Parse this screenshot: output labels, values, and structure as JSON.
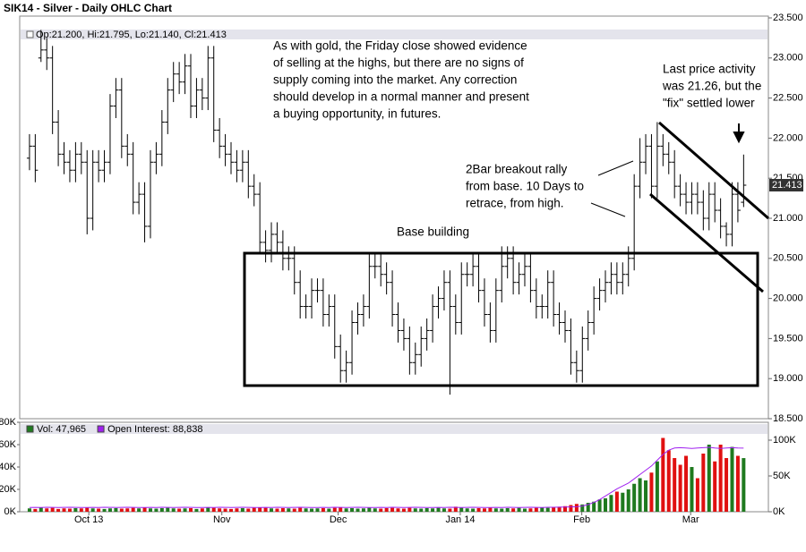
{
  "chart_data": [
    {
      "type": "ohlc",
      "title": "SIK14 - Silver - Daily OHLC Chart",
      "subtitle": "Op:21.200, Hi:21.795, Lo:21.140, Cl:21.413",
      "color": "#000000",
      "xlim": [
        -1.7,
        128.3
      ],
      "ylim": [
        18.5,
        23.5
      ],
      "yticks": [
        {
          "value": 18.5,
          "label": "18.500"
        },
        {
          "value": 19,
          "label": "19.000"
        },
        {
          "value": 19.5,
          "label": "19.500"
        },
        {
          "value": 20,
          "label": "20.000"
        },
        {
          "value": 20.5,
          "label": "20.500"
        },
        {
          "value": 21,
          "label": "21.000"
        },
        {
          "value": 21.5,
          "label": "21.500"
        },
        {
          "value": 22,
          "label": "22.000"
        },
        {
          "value": 22.5,
          "label": "22.500"
        },
        {
          "value": 23,
          "label": "23.000"
        },
        {
          "value": 23.5,
          "label": "23.500"
        }
      ],
      "open": [
        21.75,
        21.9,
        23.0,
        23.1,
        23.0,
        22.2,
        21.8,
        21.7,
        21.6,
        21.8,
        21.7,
        21.0,
        21.7,
        21.6,
        21.7,
        22.4,
        22.6,
        21.9,
        21.8,
        21.2,
        21.3,
        20.9,
        21.7,
        21.8,
        22.2,
        22.6,
        22.8,
        22.7,
        22.9,
        22.4,
        22.6,
        22.5,
        23.0,
        22.1,
        21.9,
        21.8,
        21.7,
        21.6,
        21.7,
        21.4,
        21.3,
        20.7,
        20.6,
        20.8,
        20.7,
        20.5,
        20.5,
        20.2,
        19.9,
        19.9,
        20.1,
        20.1,
        19.8,
        19.9,
        19.4,
        19.1,
        19.2,
        19.7,
        19.8,
        19.9,
        20.4,
        20.4,
        20.3,
        20.2,
        19.8,
        19.6,
        19.5,
        19.2,
        19.3,
        19.5,
        19.6,
        19.9,
        20.0,
        20.2,
        19.9,
        19.7,
        20.3,
        20.3,
        20.4,
        20.1,
        19.8,
        19.6,
        20.1,
        20.4,
        20.5,
        20.2,
        20.3,
        20.4,
        20.1,
        19.9,
        19.9,
        20.2,
        19.8,
        19.7,
        19.6,
        19.2,
        19.1,
        19.5,
        19.7,
        20.0,
        20.1,
        20.2,
        20.3,
        20.2,
        20.3,
        20.5,
        21.4,
        21.7,
        21.9,
        21.4,
        21.9,
        21.8,
        21.7,
        21.4,
        21.3,
        21.2,
        21.3,
        21.2,
        21.0,
        21.3,
        21.1,
        20.9,
        20.8,
        21.3,
        21.2
      ],
      "high": [
        22.05,
        22.05,
        23.35,
        23.25,
        23.15,
        22.35,
        21.95,
        21.85,
        21.95,
        21.95,
        21.85,
        21.85,
        21.85,
        21.85,
        22.55,
        22.75,
        22.75,
        22.05,
        21.95,
        21.45,
        21.45,
        21.85,
        21.95,
        22.35,
        22.75,
        22.95,
        22.95,
        23.05,
        23.05,
        22.75,
        22.75,
        23.15,
        23.15,
        22.25,
        22.05,
        21.95,
        21.85,
        21.85,
        21.85,
        21.55,
        21.45,
        20.85,
        20.95,
        20.95,
        20.85,
        20.65,
        20.65,
        20.35,
        20.05,
        20.25,
        20.25,
        20.25,
        20.05,
        20.05,
        19.55,
        19.35,
        19.85,
        19.95,
        20.05,
        20.55,
        20.55,
        20.55,
        20.45,
        20.35,
        19.95,
        19.75,
        19.65,
        19.45,
        19.65,
        19.75,
        20.05,
        20.15,
        20.35,
        20.35,
        20.05,
        20.45,
        20.45,
        20.55,
        20.55,
        20.25,
        19.95,
        20.25,
        20.65,
        20.65,
        20.65,
        20.45,
        20.55,
        20.55,
        20.25,
        20.05,
        20.35,
        20.35,
        19.95,
        19.85,
        19.75,
        19.35,
        19.65,
        19.85,
        20.15,
        20.25,
        20.35,
        20.45,
        20.45,
        20.45,
        20.65,
        21.55,
        22.0,
        22.05,
        22.05,
        22.2,
        22.05,
        21.95,
        21.85,
        21.55,
        21.45,
        21.45,
        21.45,
        21.35,
        21.45,
        21.45,
        21.25,
        20.95,
        21.45,
        21.45,
        21.795
      ],
      "low": [
        21.6,
        21.45,
        22.95,
        22.85,
        22.05,
        21.65,
        21.55,
        21.45,
        21.45,
        21.55,
        20.8,
        20.85,
        21.45,
        21.45,
        21.55,
        22.25,
        21.75,
        21.65,
        21.05,
        21.05,
        20.7,
        20.75,
        21.55,
        21.65,
        22.05,
        22.45,
        22.55,
        22.55,
        22.25,
        22.25,
        22.35,
        22.35,
        21.95,
        21.75,
        21.65,
        21.55,
        21.45,
        21.45,
        21.25,
        21.15,
        20.55,
        20.45,
        20.45,
        20.55,
        20.35,
        20.35,
        20.05,
        19.75,
        19.75,
        19.75,
        19.95,
        19.65,
        19.65,
        19.25,
        18.95,
        18.95,
        19.05,
        19.55,
        19.65,
        19.75,
        20.25,
        20.15,
        20.05,
        19.65,
        19.45,
        19.35,
        19.05,
        19.05,
        19.15,
        19.35,
        19.45,
        19.75,
        19.85,
        18.8,
        19.55,
        19.55,
        20.15,
        20.15,
        19.95,
        19.65,
        19.45,
        19.45,
        19.95,
        20.25,
        20.05,
        20.05,
        20.15,
        19.95,
        19.75,
        19.75,
        19.75,
        19.65,
        19.55,
        19.45,
        19.05,
        18.95,
        18.95,
        19.35,
        19.55,
        19.85,
        19.95,
        20.05,
        20.05,
        20.05,
        20.15,
        20.35,
        21.25,
        21.55,
        21.25,
        21.25,
        21.65,
        21.55,
        21.25,
        21.15,
        21.05,
        21.05,
        21.05,
        20.85,
        20.85,
        20.95,
        20.75,
        20.65,
        20.65,
        20.95,
        21.14
      ],
      "close": [
        21.9,
        21.6,
        23.1,
        23.0,
        22.2,
        21.8,
        21.7,
        21.6,
        21.8,
        21.7,
        21.0,
        21.7,
        21.6,
        21.7,
        22.4,
        22.6,
        21.9,
        21.8,
        21.2,
        21.3,
        20.9,
        21.7,
        21.8,
        22.2,
        22.6,
        22.8,
        22.7,
        22.9,
        22.4,
        22.6,
        22.5,
        23.0,
        22.1,
        21.9,
        21.8,
        21.7,
        21.6,
        21.7,
        21.4,
        21.3,
        20.7,
        20.6,
        20.8,
        20.7,
        20.5,
        20.5,
        20.2,
        19.9,
        19.9,
        20.1,
        20.1,
        19.8,
        19.9,
        19.4,
        19.1,
        19.2,
        19.7,
        19.8,
        19.9,
        20.4,
        20.4,
        20.3,
        20.2,
        19.8,
        19.6,
        19.5,
        19.2,
        19.3,
        19.5,
        19.6,
        19.9,
        20.0,
        20.2,
        19.9,
        19.7,
        20.3,
        20.3,
        20.4,
        20.1,
        19.8,
        19.6,
        20.1,
        20.4,
        20.5,
        20.2,
        20.3,
        20.4,
        20.1,
        19.9,
        19.9,
        20.2,
        19.8,
        19.7,
        19.6,
        19.2,
        19.1,
        19.5,
        19.7,
        20.0,
        20.1,
        20.2,
        20.3,
        20.2,
        20.3,
        20.5,
        21.4,
        21.7,
        21.9,
        21.4,
        21.9,
        21.8,
        21.7,
        21.4,
        21.3,
        21.2,
        21.3,
        21.2,
        21.0,
        21.3,
        21.1,
        20.9,
        20.8,
        21.3,
        21.1,
        21.413
      ],
      "annotations": [
        [
          "As with gold, the Friday close showed evidence",
          "of selling at the highs, but there are no signs of",
          "supply coming into the market.  Any correction",
          "should develop in a normal manner and present",
          "a buying opportunity, in futures."
        ],
        [
          "Last price activity",
          "was 21.26, but the",
          "\"fix\" settled lower"
        ],
        [
          "2Bar breakout rally",
          "from base.  10 Days to",
          "retrace, from high."
        ],
        [
          "Base building"
        ]
      ]
    },
    {
      "type": "bar",
      "xlim": [
        -1.7,
        128.3
      ],
      "xticks": [
        {
          "value": 10.3,
          "label": "Oct 13"
        },
        {
          "value": 33.4,
          "label": "Nov"
        },
        {
          "value": 53.6,
          "label": "Dec"
        },
        {
          "value": 74.8,
          "label": "Jan 14"
        },
        {
          "value": 95.9,
          "label": "Feb"
        },
        {
          "value": 114.8,
          "label": "Mar"
        }
      ],
      "ylim": [
        0,
        80000
      ],
      "yticks": [
        {
          "value": 0,
          "label": "0K"
        },
        {
          "value": 20000,
          "label": "20K"
        },
        {
          "value": 40000,
          "label": "40K"
        },
        {
          "value": 60000,
          "label": "60K"
        },
        {
          "value": 80000,
          "label": "80K"
        }
      ],
      "y2lim": [
        0,
        125000
      ],
      "y2ticks": [
        {
          "value": 0,
          "label": "0K"
        },
        {
          "value": 50000,
          "label": "50K"
        },
        {
          "value": 100000,
          "label": "100K"
        }
      ],
      "up_color": "#1f7a1f",
      "down_color": "#e01010",
      "series": [
        {
          "name": "Vol: 47,965",
          "color": "#1f7a1f",
          "values": [
            3000,
            2500,
            4000,
            3000,
            3500,
            2500,
            3000,
            2800,
            3200,
            3000,
            3500,
            3000,
            2800,
            2500,
            3000,
            3200,
            2800,
            3000,
            3500,
            3000,
            4000,
            3000,
            2800,
            3200,
            3500,
            3000,
            2800,
            3000,
            3200,
            2500,
            3000,
            3800,
            3500,
            3000,
            2800,
            2500,
            3000,
            3200,
            2800,
            3500,
            4000,
            3500,
            3000,
            2800,
            3200,
            3000,
            2800,
            3500,
            3000,
            2800,
            3000,
            3200,
            2800,
            3500,
            4000,
            3000,
            3200,
            2800,
            3000,
            3500,
            3000,
            2800,
            3200,
            3500,
            3000,
            2800,
            3500,
            3000,
            2800,
            3200,
            3000,
            3500,
            3000,
            2800,
            4500,
            3500,
            3000,
            2800,
            3200,
            3000,
            3500,
            3000,
            2800,
            3200,
            3000,
            3500,
            2800,
            3000,
            3500,
            4000,
            3500,
            4000,
            4500,
            5000,
            6000,
            7000,
            6500,
            8000,
            9000,
            11000,
            12000,
            15000,
            18000,
            17000,
            20000,
            25000,
            30000,
            28000,
            35000,
            45000,
            66000,
            55000,
            48000,
            42000,
            50000,
            40000,
            30000,
            52000,
            60000,
            45000,
            60000,
            48000,
            58000,
            50000,
            47965
          ]
        },
        {
          "name": "Open Interest: 88,838",
          "color": "#a020f0",
          "axis": "y2",
          "values": [
            6000,
            6100,
            6000,
            6200,
            6100,
            6000,
            6100,
            6200,
            6100,
            6000,
            6000,
            6100,
            6000,
            6200,
            6100,
            6000,
            6100,
            6200,
            6100,
            6000,
            6000,
            6100,
            6000,
            6200,
            6100,
            6000,
            6100,
            6200,
            6100,
            6000,
            6000,
            6100,
            6000,
            6200,
            6100,
            6000,
            6100,
            6200,
            6100,
            6000,
            6000,
            6100,
            6000,
            6200,
            6100,
            6000,
            6100,
            6200,
            6100,
            6000,
            6000,
            6100,
            6000,
            6200,
            6100,
            6000,
            6100,
            6200,
            6100,
            6000,
            6000,
            6100,
            6000,
            6200,
            6100,
            6000,
            6100,
            6200,
            6100,
            6000,
            6000,
            6100,
            6000,
            6200,
            6100,
            6000,
            6100,
            6200,
            6100,
            6000,
            6000,
            6100,
            6000,
            6200,
            6100,
            6000,
            6100,
            6200,
            6100,
            6000,
            6200,
            6300,
            6400,
            6500,
            6800,
            7000,
            8000,
            10000,
            13000,
            17000,
            22000,
            27000,
            32000,
            36000,
            40000,
            46000,
            52000,
            58000,
            64000,
            72000,
            80000,
            86000,
            89000,
            89500,
            89000,
            88500,
            89000,
            89500,
            90000,
            89000,
            88500,
            89000,
            89500,
            89000,
            88838
          ]
        }
      ]
    }
  ]
}
